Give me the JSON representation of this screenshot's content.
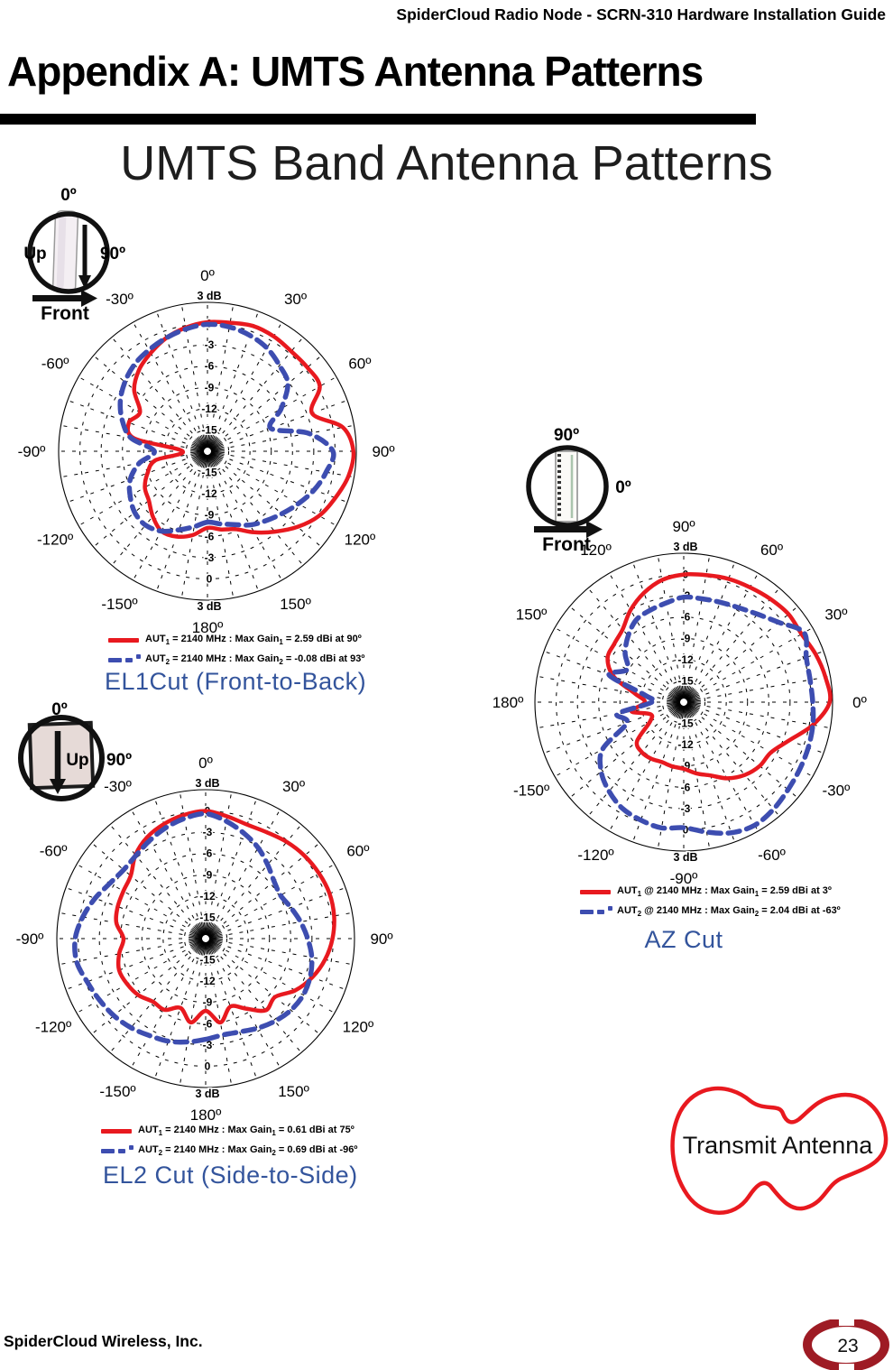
{
  "page": {
    "doc_header": "SpiderCloud Radio Node - SCRN-310 Hardware Installation Guide",
    "title": "Appendix A: UMTS Antenna Patterns",
    "subtitle": "UMTS Band Antenna Patterns",
    "footer_company": "SpiderCloud Wireless, Inc.",
    "page_number": "23",
    "transmit_antenna_label": "Transmit Antenna"
  },
  "colors": {
    "curve_red": "#e8191f",
    "curve_blue": "#3d4db0",
    "caption_blue": "#33549c",
    "badge_red": "#9e1b24"
  },
  "orientation_icons": [
    {
      "top": "0º",
      "right": "90º",
      "inside": "Up",
      "bottom": "Front"
    },
    {
      "top": "0º",
      "right": "90º",
      "inside": "Up",
      "bottom": ""
    },
    {
      "top": "90º",
      "right": "0º",
      "inside": "",
      "bottom": "Front"
    }
  ],
  "chart_data": [
    {
      "type": "polar-line",
      "caption": "EL1Cut (Front-to-Back)",
      "orientation": "zero-top-cw",
      "r_axis": {
        "unit": "dB",
        "max": 3,
        "min": -18,
        "ticks": [
          {
            "db": 3,
            "text": "3 dB"
          },
          {
            "db": 0,
            "text": "0"
          },
          {
            "db": -3,
            "text": "-3"
          },
          {
            "db": -6,
            "text": "-6"
          },
          {
            "db": -9,
            "text": "-9"
          },
          {
            "db": -12,
            "text": "-12"
          },
          {
            "db": -15,
            "text": "-15"
          }
        ]
      },
      "angle_labels": [
        {
          "deg": 0,
          "text": "0º"
        },
        {
          "deg": 30,
          "text": "30º"
        },
        {
          "deg": 60,
          "text": "60º"
        },
        {
          "deg": 90,
          "text": "90º"
        },
        {
          "deg": 120,
          "text": "120º"
        },
        {
          "deg": 150,
          "text": "150º"
        },
        {
          "deg": 180,
          "text": "180º"
        },
        {
          "deg": -150,
          "text": "-150º"
        },
        {
          "deg": -120,
          "text": "-120º"
        },
        {
          "deg": -90,
          "text": "-90º"
        },
        {
          "deg": -60,
          "text": "-60º"
        },
        {
          "deg": -30,
          "text": "-30º"
        }
      ],
      "series": [
        {
          "name": "AUT1",
          "color": "curve_red",
          "line": "solid",
          "freq_mhz": 2140,
          "max_gain_dbi": 2.59,
          "max_gain_angle_deg": 90,
          "angles_start_deg": -180,
          "angles_step_deg": 10,
          "gains_dbi": [
            -7.2,
            -6.0,
            -5.2,
            -5.0,
            -6.0,
            -7.2,
            -7.8,
            -9.0,
            -10.5,
            -14.5,
            -7.5,
            -6.2,
            -7.0,
            -4.5,
            -3.0,
            -2.0,
            -1.0,
            -0.3,
            0.2,
            0.4,
            0.8,
            0.7,
            0.4,
            0.4,
            0.3,
            -2.3,
            1.4,
            2.59,
            2.2,
            1.2,
            0.2,
            -1.4,
            -3.2,
            -4.8,
            -6.3,
            -6.8,
            -7.2
          ]
        },
        {
          "name": "AUT2",
          "color": "curve_blue",
          "line": "dashed",
          "freq_mhz": 2140,
          "max_gain_dbi": -0.08,
          "max_gain_angle_deg": 93,
          "angles_start_deg": -180,
          "angles_step_deg": 10,
          "gains_dbi": [
            -8.0,
            -7.2,
            -6.2,
            -5.0,
            -4.4,
            -4.6,
            -5.4,
            -6.4,
            -8.2,
            -10.5,
            -7.0,
            -5.2,
            -3.8,
            -2.8,
            -2.0,
            -1.5,
            -1.0,
            -0.5,
            -0.1,
            -0.2,
            -0.6,
            -1.2,
            -2.2,
            -3.2,
            -6.0,
            -8.5,
            -3.5,
            -0.3,
            -1.0,
            -2.0,
            -3.2,
            -4.3,
            -5.2,
            -6.0,
            -7.0,
            -7.6,
            -8.0
          ]
        }
      ],
      "legend": [
        {
          "swatch": "solid-red",
          "parts": [
            "AUT",
            "1",
            " = 2140 MHz : Max Gain",
            "1",
            " = 2.59 dBi at 90º"
          ]
        },
        {
          "swatch": "dashed-blue",
          "parts": [
            "AUT",
            "2",
            " = 2140 MHz : Max Gain",
            "2",
            " = -0.08 dBi at 93º"
          ]
        }
      ]
    },
    {
      "type": "polar-line",
      "caption": "EL2 Cut (Side-to-Side)",
      "orientation": "zero-top-cw",
      "r_axis": {
        "unit": "dB",
        "max": 3,
        "min": -18,
        "ticks": [
          {
            "db": 3,
            "text": "3 dB"
          },
          {
            "db": 0,
            "text": "0"
          },
          {
            "db": -3,
            "text": "-3"
          },
          {
            "db": -6,
            "text": "-6"
          },
          {
            "db": -9,
            "text": "-9"
          },
          {
            "db": -12,
            "text": "-12"
          },
          {
            "db": -15,
            "text": "-15"
          }
        ]
      },
      "angle_labels": [
        {
          "deg": 0,
          "text": "0º"
        },
        {
          "deg": 30,
          "text": "30º"
        },
        {
          "deg": 60,
          "text": "60º"
        },
        {
          "deg": 90,
          "text": "90º"
        },
        {
          "deg": 120,
          "text": "120º"
        },
        {
          "deg": 150,
          "text": "150º"
        },
        {
          "deg": 180,
          "text": "180º"
        },
        {
          "deg": -150,
          "text": "-150º"
        },
        {
          "deg": -120,
          "text": "-120º"
        },
        {
          "deg": -90,
          "text": "-90º"
        },
        {
          "deg": -60,
          "text": "-60º"
        },
        {
          "deg": -30,
          "text": "-30º"
        }
      ],
      "series": [
        {
          "name": "AUT1",
          "color": "curve_red",
          "line": "solid",
          "freq_mhz": 2140,
          "max_gain_dbi": 0.61,
          "max_gain_angle_deg": 75,
          "angles_start_deg": -180,
          "angles_step_deg": 10,
          "gains_dbi": [
            -7.8,
            -6.0,
            -7.6,
            -6.4,
            -6.4,
            -5.6,
            -5.2,
            -5.0,
            -5.6,
            -6.4,
            -5.2,
            -4.8,
            -4.6,
            -4.2,
            -2.6,
            -1.5,
            -0.8,
            -0.3,
            0.0,
            -0.5,
            -0.9,
            -0.7,
            -0.2,
            0.2,
            0.45,
            0.6,
            0.4,
            -0.1,
            -0.9,
            -2.0,
            -3.4,
            -5.2,
            -4.8,
            -6.6,
            -7.8,
            -6.0,
            -7.8
          ]
        },
        {
          "name": "AUT2",
          "color": "curve_blue",
          "line": "dashed",
          "freq_mhz": 2140,
          "max_gain_dbi": 0.69,
          "max_gain_angle_deg": -96,
          "angles_start_deg": -180,
          "angles_step_deg": 10,
          "gains_dbi": [
            -3.8,
            -3.2,
            -2.6,
            -2.2,
            -1.6,
            -1.1,
            -0.7,
            -0.2,
            0.5,
            0.4,
            -0.4,
            -1.4,
            -2.4,
            -2.9,
            -2.7,
            -2.1,
            -1.4,
            -0.8,
            -0.4,
            -1.2,
            -2.2,
            -3.2,
            -4.4,
            -5.4,
            -5.8,
            -5.2,
            -4.4,
            -3.6,
            -2.8,
            -2.3,
            -2.1,
            -2.3,
            -2.8,
            -3.4,
            -4.0,
            -4.2,
            -3.8
          ]
        }
      ],
      "legend": [
        {
          "swatch": "solid-red",
          "parts": [
            "AUT",
            "1",
            " = 2140 MHz : Max Gain",
            "1",
            " = 0.61 dBi at 75º"
          ]
        },
        {
          "swatch": "dashed-blue",
          "parts": [
            "AUT",
            "2",
            " = 2140 MHz : Max Gain",
            "2",
            " = 0.69 dBi at -96º"
          ]
        }
      ]
    },
    {
      "type": "polar-line",
      "caption": "AZ Cut",
      "orientation": "zero-right-ccw",
      "r_axis": {
        "unit": "dB",
        "max": 3,
        "min": -18,
        "ticks": [
          {
            "db": 3,
            "text": "3 dB"
          },
          {
            "db": 0,
            "text": "0"
          },
          {
            "db": -3,
            "text": "-3"
          },
          {
            "db": -6,
            "text": "-6"
          },
          {
            "db": -9,
            "text": "-9"
          },
          {
            "db": -12,
            "text": "-12"
          },
          {
            "db": -15,
            "text": "-15"
          }
        ]
      },
      "angle_labels": [
        {
          "deg": 90,
          "text": "90º"
        },
        {
          "deg": 60,
          "text": "60º"
        },
        {
          "deg": 30,
          "text": "30º"
        },
        {
          "deg": 0,
          "text": "0º"
        },
        {
          "deg": -30,
          "text": "-30º"
        },
        {
          "deg": -60,
          "text": "-60º"
        },
        {
          "deg": -90,
          "text": "-90º"
        },
        {
          "deg": -120,
          "text": "-120º"
        },
        {
          "deg": -150,
          "text": "-150º"
        },
        {
          "deg": 180,
          "text": "180º"
        },
        {
          "deg": 150,
          "text": "150º"
        },
        {
          "deg": 120,
          "text": "120º"
        }
      ],
      "series": [
        {
          "name": "AUT1",
          "color": "curve_red",
          "line": "solid",
          "freq_mhz": 2140,
          "max_gain_dbi": 2.59,
          "max_gain_angle_deg": 3,
          "angles_start_deg": -180,
          "angles_step_deg": 10,
          "gains_dbi": [
            -12.5,
            -10.5,
            -13.0,
            -12.5,
            -9.4,
            -8.8,
            -8.8,
            -9.0,
            -8.8,
            -8.6,
            -7.8,
            -7.0,
            -5.6,
            -4.6,
            -4.0,
            -3.8,
            -2.2,
            0.5,
            2.59,
            2.3,
            1.8,
            1.2,
            1.3,
            1.0,
            0.7,
            0.5,
            0.2,
            0.0,
            -0.5,
            -1.6,
            -3.0,
            -4.6,
            -5.2,
            -5.6,
            -7.5,
            -11.0,
            -12.5
          ]
        },
        {
          "name": "AUT2",
          "color": "curve_blue",
          "line": "dashed",
          "freq_mhz": 2140,
          "max_gain_dbi": 2.04,
          "max_gain_angle_deg": -63,
          "angles_start_deg": -180,
          "angles_step_deg": 10,
          "gains_dbi": [
            -13.5,
            -8.5,
            -9.5,
            -4.8,
            -2.8,
            -1.6,
            -0.7,
            -0.3,
            0.0,
            -0.3,
            0.6,
            1.6,
            2.04,
            1.7,
            1.2,
            0.9,
            0.7,
            0.5,
            0.2,
            0.1,
            0.4,
            1.6,
            -0.5,
            -1.8,
            -2.6,
            -3.0,
            -3.2,
            -3.2,
            -3.8,
            -4.2,
            -4.6,
            -5.8,
            -7.2,
            -8.8,
            -6.8,
            -12.5,
            -13.5
          ]
        }
      ],
      "legend": [
        {
          "swatch": "solid-red",
          "parts": [
            "AUT",
            "1",
            " @ 2140 MHz : Max Gain",
            "1",
            " = 2.59 dBi at 3º"
          ]
        },
        {
          "swatch": "dashed-blue",
          "parts": [
            "AUT",
            "2",
            " @ 2140 MHz : Max Gain",
            "2",
            " = 2.04 dBi at -63º"
          ]
        }
      ]
    }
  ]
}
